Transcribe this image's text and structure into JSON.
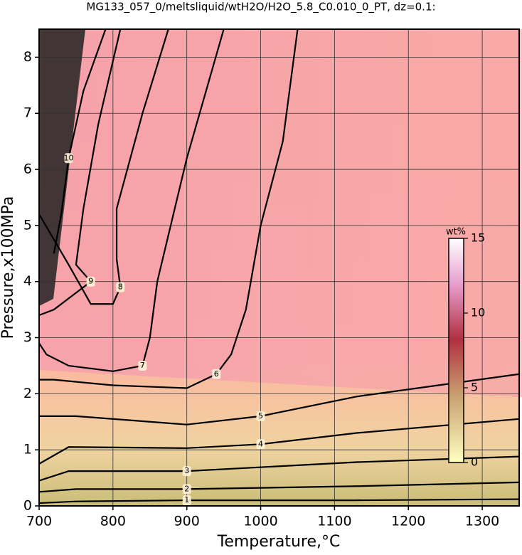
{
  "chart_data": {
    "type": "contour",
    "title": "MG133_057_0/meltsliquid/wtH2O/H2O_5.8_C0.010_0_PT, dz=0.1:",
    "x_label": "Temperature,°C",
    "y_label": "Pressure,x100MPa",
    "xlim": [
      700,
      1350
    ],
    "xticks": [
      700,
      800,
      900,
      1000,
      1100,
      1200,
      1300
    ],
    "ylim": [
      0,
      8.5
    ],
    "yticks": [
      0,
      1,
      2,
      3,
      4,
      5,
      6,
      7,
      8
    ],
    "grid": true,
    "color": "#000000",
    "contours": [
      {
        "level": 1,
        "x": [
          700,
          750,
          900,
          1125,
          1350
        ],
        "y": [
          0.05,
          0.08,
          0.1,
          0.1,
          0.12
        ]
      },
      {
        "level": 2,
        "x": [
          700,
          750,
          900,
          1125,
          1350
        ],
        "y": [
          0.25,
          0.3,
          0.3,
          0.35,
          0.42
        ]
      },
      {
        "level": 3,
        "x": [
          700,
          740,
          900,
          1130,
          1350
        ],
        "y": [
          0.45,
          0.62,
          0.62,
          0.78,
          0.88
        ]
      },
      {
        "level": 4,
        "x": [
          700,
          740,
          900,
          1000,
          1130,
          1350
        ],
        "y": [
          0.75,
          1.05,
          1.03,
          1.1,
          1.3,
          1.55
        ]
      },
      {
        "level": 5,
        "x": [
          700,
          750,
          900,
          1000,
          1130,
          1350
        ],
        "y": [
          1.6,
          1.6,
          1.45,
          1.6,
          1.95,
          2.35
        ]
      },
      {
        "level": 6,
        "x": [
          1050,
          1030,
          1000,
          980,
          960,
          940,
          900,
          800,
          720,
          700
        ],
        "y": [
          8.5,
          6.5,
          5.0,
          3.5,
          2.7,
          2.35,
          2.1,
          2.15,
          2.25,
          2.25
        ]
      },
      {
        "level": 7,
        "x": [
          950,
          900,
          860,
          850,
          840,
          800,
          740,
          710,
          700
        ],
        "y": [
          8.5,
          6.2,
          4.0,
          3.0,
          2.5,
          2.4,
          2.5,
          2.7,
          2.9
        ]
      },
      {
        "level": 8,
        "x": [
          875,
          840,
          805,
          805,
          810,
          800,
          770,
          740,
          700
        ],
        "y": [
          8.5,
          7.0,
          5.3,
          4.4,
          3.9,
          3.6,
          3.6,
          4.3,
          5.2
        ]
      },
      {
        "level": 9,
        "x": [
          810,
          780,
          760,
          750,
          770,
          760,
          720,
          700
        ],
        "y": [
          8.5,
          6.8,
          5.3,
          4.3,
          4.0,
          3.9,
          3.5,
          3.4
        ]
      },
      {
        "level": 10,
        "x": [
          790,
          760,
          740,
          730,
          720
        ],
        "y": [
          8.5,
          7.4,
          6.2,
          5.2,
          4.5
        ]
      }
    ],
    "colorbar": {
      "label": "wt%",
      "lim": [
        0,
        15
      ],
      "ticks": [
        0,
        5,
        10,
        15
      ]
    }
  }
}
